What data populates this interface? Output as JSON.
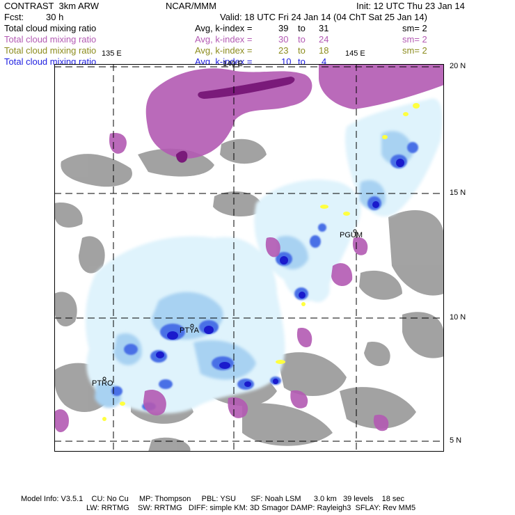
{
  "header": {
    "model": "CONTRAST  3km ARW",
    "org": "NCAR/MMM",
    "init": "Init: 12 UTC Thu 23 Jan 14",
    "fcst_label": "Fcst:",
    "fcst_value": "30 h",
    "valid": "Valid: 18 UTC Fri 24 Jan 14 (04 ChT Sat 25 Jan 14)"
  },
  "legend": [
    {
      "field": "Total cloud mixing ratio",
      "avg": "Avg, k-index =",
      "from": "39",
      "to_word": "to",
      "to": "31",
      "sm": "sm= 2",
      "color": "#000000"
    },
    {
      "field": "Total cloud mixing ratio",
      "avg": "Avg, k-index =",
      "from": "30",
      "to_word": "to",
      "to": "24",
      "sm": "sm= 2",
      "color": "#b35ab3"
    },
    {
      "field": "Total cloud mixing ratio",
      "avg": "Avg, k-index =",
      "from": "23",
      "to_word": "to",
      "to": "18",
      "sm": "sm= 2",
      "color": "#8c8c1e"
    },
    {
      "field": "Total cloud mixing ratio",
      "avg": "Avg, k-index =",
      "from": "10",
      "to_word": "to",
      "to": "4",
      "sm": "",
      "color": "#2020e0"
    }
  ],
  "axes": {
    "lon_labels": [
      "135 E",
      "140 E",
      "145 E"
    ],
    "lat_labels": [
      "20 N",
      "15 N",
      "10 N",
      "5 N"
    ]
  },
  "stations": [
    "PTYA",
    "PGUM",
    "PTRO"
  ],
  "footer": {
    "line1": "Model Info: V3.5.1    CU: No Cu     MP: Thompson     PBL: YSU       SF: Noah LSM      3.0 km   39 levels    18 sec",
    "line2": "LW: RRTMG    SW: RRTMG   DIFF: simple KM: 3D Smagor DAMP: Rayleigh3  SFLAY: Rev MM5"
  },
  "colors": {
    "light_cloud": "#dff3fc",
    "mid_cloud": "#a8d2f2",
    "dark_cloud": "#4a6fe6",
    "core_cloud": "#1a1acc",
    "grey_cloud": "#9e9e9e",
    "pink_cloud": "#b35ab3",
    "dark_pink": "#7a1a7a",
    "yellow": "#ffff40"
  }
}
